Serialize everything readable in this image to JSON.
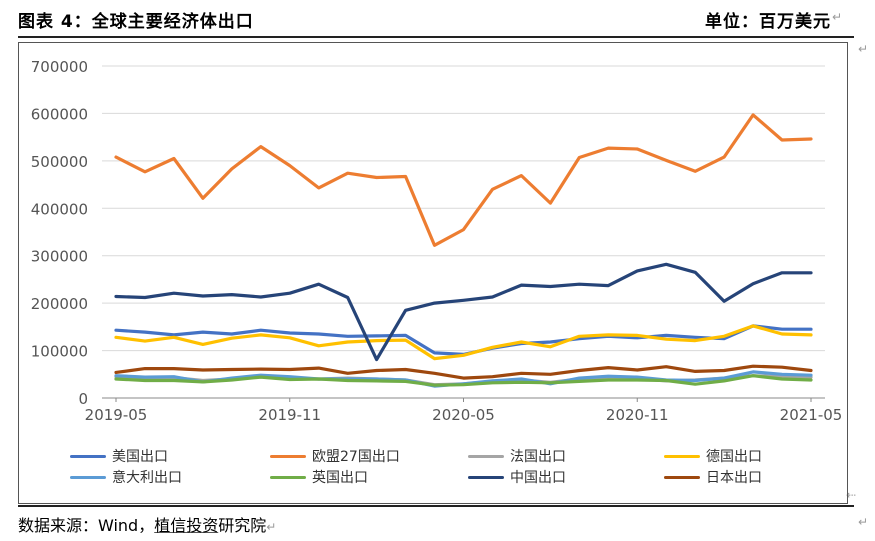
{
  "header": {
    "title": "图表 4：全球主要经济体出口",
    "unit": "单位：百万美元"
  },
  "source": {
    "prefix": "数据来源：Wind，",
    "brand": "植信投资",
    "suffix": "研究院"
  },
  "marks": {
    "return_glyph": "↵",
    "arrow_glyph": "⇠"
  },
  "chart_data": {
    "type": "line",
    "title": "",
    "xlabel": "",
    "ylabel": "",
    "ylim": [
      0,
      700000
    ],
    "yticks": [
      "0",
      "100000",
      "200000",
      "300000",
      "400000",
      "500000",
      "600000",
      "700000"
    ],
    "xticks": [
      "2019-05",
      "2019-11",
      "2020-05",
      "2020-11",
      "2021-05"
    ],
    "x": [
      "2019-05",
      "2019-06",
      "2019-07",
      "2019-08",
      "2019-09",
      "2019-10",
      "2019-11",
      "2019-12",
      "2020-01",
      "2020-02",
      "2020-03",
      "2020-04",
      "2020-05",
      "2020-06",
      "2020-07",
      "2020-08",
      "2020-09",
      "2020-10",
      "2020-11",
      "2020-12",
      "2021-01",
      "2021-02",
      "2021-03",
      "2021-04",
      "2021-05"
    ],
    "series": [
      {
        "name": "美国出口",
        "color": "#4472C4",
        "values": [
          143000,
          139000,
          133000,
          139000,
          135000,
          143000,
          137000,
          135000,
          130000,
          131000,
          132000,
          95000,
          92000,
          105000,
          115000,
          118000,
          125000,
          130000,
          127000,
          132000,
          128000,
          125000,
          152000,
          145000,
          145000
        ]
      },
      {
        "name": "欧盟27国出口",
        "color": "#ED7D31",
        "values": [
          508000,
          477000,
          505000,
          421000,
          483000,
          530000,
          490000,
          443000,
          474000,
          465000,
          467000,
          322000,
          355000,
          440000,
          469000,
          411000,
          507000,
          527000,
          525000,
          501000,
          478000,
          508000,
          597000,
          544000,
          546000
        ]
      },
      {
        "name": "法国出口",
        "color": "#A5A5A5",
        "values": [
          45000,
          42000,
          43000,
          37000,
          40000,
          46000,
          42000,
          40000,
          42000,
          40000,
          38000,
          28000,
          30000,
          35000,
          38000,
          33000,
          40000,
          42000,
          41000,
          36000,
          38000,
          42000,
          47000,
          45000,
          44000
        ]
      },
      {
        "name": "德国出口",
        "color": "#FFC000",
        "values": [
          128000,
          120000,
          128000,
          113000,
          126000,
          133000,
          127000,
          110000,
          118000,
          121000,
          122000,
          83000,
          90000,
          107000,
          118000,
          108000,
          130000,
          133000,
          132000,
          124000,
          121000,
          130000,
          152000,
          135000,
          133000
        ]
      },
      {
        "name": "意大利出口",
        "color": "#5B9BD5",
        "values": [
          47000,
          44000,
          45000,
          34000,
          42000,
          48000,
          45000,
          40000,
          40000,
          40000,
          38000,
          25000,
          30000,
          36000,
          40000,
          30000,
          42000,
          46000,
          44000,
          38000,
          37000,
          42000,
          55000,
          50000,
          48000
        ]
      },
      {
        "name": "英国出口",
        "color": "#70AD47",
        "values": [
          40000,
          37000,
          37000,
          34000,
          38000,
          44000,
          39000,
          40000,
          37000,
          36000,
          35000,
          27000,
          28000,
          32000,
          33000,
          32000,
          35000,
          38000,
          38000,
          37000,
          29000,
          36000,
          47000,
          40000,
          38000
        ]
      },
      {
        "name": "中国出口",
        "color": "#264478",
        "values": [
          214000,
          212000,
          221000,
          215000,
          218000,
          213000,
          221000,
          240000,
          212000,
          81000,
          185000,
          200000,
          206000,
          213000,
          238000,
          235000,
          240000,
          237000,
          268000,
          282000,
          265000,
          204000,
          241000,
          264000,
          264000
        ]
      },
      {
        "name": "日本出口",
        "color": "#9E480E",
        "values": [
          54000,
          62000,
          62000,
          59000,
          60000,
          61000,
          60000,
          63000,
          52000,
          58000,
          60000,
          52000,
          42000,
          45000,
          52000,
          50000,
          58000,
          64000,
          59000,
          66000,
          56000,
          58000,
          67000,
          65000,
          58000
        ]
      }
    ]
  }
}
